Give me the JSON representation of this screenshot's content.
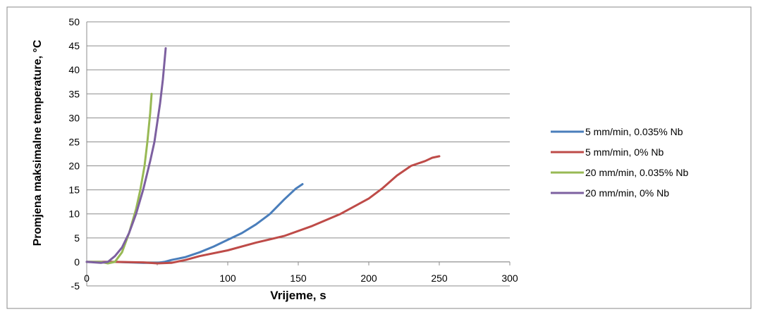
{
  "chart_data": {
    "type": "line",
    "title": "",
    "xlabel": "Vrijeme, s",
    "ylabel": "Promjena maksimalne temperature, °C",
    "xlim": [
      0,
      300
    ],
    "ylim": [
      -5,
      50
    ],
    "x_ticks": [
      "0",
      "100",
      "150",
      "200",
      "250",
      "300"
    ],
    "x_tick_values": [
      0,
      100,
      150,
      200,
      250,
      300
    ],
    "y_ticks": [
      "50",
      "45",
      "40",
      "35",
      "30",
      "25",
      "20",
      "15",
      "10",
      "5",
      "0",
      "-5"
    ],
    "y_tick_values": [
      50,
      45,
      40,
      35,
      30,
      25,
      20,
      15,
      10,
      5,
      0,
      -5
    ],
    "grid": "horizontal",
    "legend_position": "right",
    "series": [
      {
        "name": "5 mm/min, 0.035% Nb",
        "color": "#4A7EBB",
        "x": [
          0,
          20,
          40,
          50,
          55,
          60,
          70,
          80,
          90,
          100,
          110,
          120,
          130,
          140,
          148,
          153
        ],
        "y": [
          0,
          0,
          -0.2,
          -0.2,
          0,
          0.4,
          1.0,
          2.0,
          3.2,
          4.6,
          6.0,
          7.8,
          10.0,
          13.0,
          15.2,
          16.2
        ]
      },
      {
        "name": "5 mm/min, 0% Nb",
        "color": "#BE4B48",
        "x": [
          0,
          20,
          40,
          50,
          60,
          70,
          80,
          100,
          120,
          140,
          160,
          180,
          200,
          210,
          220,
          230,
          240,
          245,
          250
        ],
        "y": [
          0,
          0,
          -0.1,
          -0.3,
          -0.2,
          0.4,
          1.2,
          2.4,
          4.0,
          5.4,
          7.5,
          10.0,
          13.2,
          15.4,
          18.0,
          20.0,
          21.0,
          21.7,
          22.0
        ]
      },
      {
        "name": "20 mm/min, 0.035% Nb",
        "color": "#98B954",
        "x": [
          0,
          10,
          15,
          20,
          25,
          30,
          35,
          38,
          41,
          43,
          45,
          46
        ],
        "y": [
          0,
          0,
          -0.3,
          0,
          2,
          6,
          11,
          15,
          20,
          25,
          31,
          35
        ]
      },
      {
        "name": "20 mm/min, 0% Nb",
        "color": "#7D60A0",
        "x": [
          0,
          10,
          15,
          20,
          25,
          30,
          35,
          40,
          45,
          48,
          50,
          52,
          54,
          56
        ],
        "y": [
          0,
          -0.2,
          0,
          1.2,
          3,
          6,
          10,
          15,
          21,
          25,
          29,
          33,
          38,
          44.5
        ]
      }
    ]
  }
}
